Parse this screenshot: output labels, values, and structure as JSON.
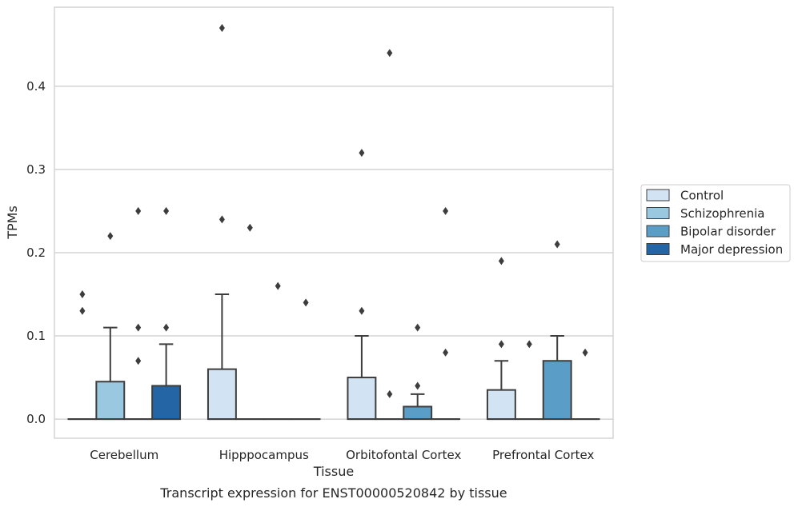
{
  "chart_data": {
    "type": "box",
    "caption": "Transcript expression for ENST00000520842 by tissue",
    "xlabel": "Tissue",
    "ylabel": "TPMs",
    "ylim": [
      -0.023,
      0.495
    ],
    "yticks": [
      0.0,
      0.1,
      0.2,
      0.3,
      0.4
    ],
    "ytick_labels": [
      "0.0",
      "0.1",
      "0.2",
      "0.3",
      "0.4"
    ],
    "grid": true,
    "legend_position": "right",
    "categories": [
      "Cerebellum",
      "Hipppocampus",
      "Orbitofontal Cortex",
      "Prefrontal Cortex"
    ],
    "series": [
      {
        "name": "Control",
        "color": "#d2e3f3",
        "boxes": [
          {
            "q1": 0,
            "median": 0,
            "q3": 0,
            "whisker_low": 0,
            "whisker_high": 0,
            "outliers": [
              0.13,
              0.15
            ]
          },
          {
            "q1": 0,
            "median": 0,
            "q3": 0.06,
            "whisker_low": 0,
            "whisker_high": 0.15,
            "outliers": [
              0.24,
              0.47
            ]
          },
          {
            "q1": 0,
            "median": 0,
            "q3": 0.05,
            "whisker_low": 0,
            "whisker_high": 0.1,
            "outliers": [
              0.13,
              0.32
            ]
          },
          {
            "q1": 0,
            "median": 0,
            "q3": 0.035,
            "whisker_low": 0,
            "whisker_high": 0.07,
            "outliers": [
              0.09,
              0.19
            ]
          }
        ]
      },
      {
        "name": "Schizophrenia",
        "color": "#9ac8e0",
        "boxes": [
          {
            "q1": 0,
            "median": 0,
            "q3": 0.045,
            "whisker_low": 0,
            "whisker_high": 0.11,
            "outliers": [
              0.22
            ]
          },
          {
            "q1": 0,
            "median": 0,
            "q3": 0,
            "whisker_low": 0,
            "whisker_high": 0,
            "outliers": [
              0.23
            ]
          },
          {
            "q1": 0,
            "median": 0,
            "q3": 0,
            "whisker_low": 0,
            "whisker_high": 0,
            "outliers": [
              0.03,
              0.44
            ]
          },
          {
            "q1": 0,
            "median": 0,
            "q3": 0,
            "whisker_low": 0,
            "whisker_high": 0,
            "outliers": [
              0.09
            ]
          }
        ]
      },
      {
        "name": "Bipolar disorder",
        "color": "#5a9ec8",
        "boxes": [
          {
            "q1": 0,
            "median": 0,
            "q3": 0,
            "whisker_low": 0,
            "whisker_high": 0,
            "outliers": [
              0.07,
              0.11,
              0.25
            ]
          },
          {
            "q1": 0,
            "median": 0,
            "q3": 0,
            "whisker_low": 0,
            "whisker_high": 0,
            "outliers": [
              0.16
            ]
          },
          {
            "q1": 0,
            "median": 0,
            "q3": 0.015,
            "whisker_low": 0,
            "whisker_high": 0.03,
            "outliers": [
              0.04,
              0.11
            ]
          },
          {
            "q1": 0,
            "median": 0,
            "q3": 0.07,
            "whisker_low": 0,
            "whisker_high": 0.1,
            "outliers": [
              0.21
            ]
          }
        ]
      },
      {
        "name": "Major depression",
        "color": "#2465a6",
        "boxes": [
          {
            "q1": 0,
            "median": 0,
            "q3": 0.04,
            "whisker_low": 0,
            "whisker_high": 0.09,
            "outliers": [
              0.11,
              0.25
            ]
          },
          {
            "q1": 0,
            "median": 0,
            "q3": 0,
            "whisker_low": 0,
            "whisker_high": 0,
            "outliers": [
              0.14
            ]
          },
          {
            "q1": 0,
            "median": 0,
            "q3": 0,
            "whisker_low": 0,
            "whisker_high": 0,
            "outliers": [
              0.08,
              0.25
            ]
          },
          {
            "q1": 0,
            "median": 0,
            "q3": 0,
            "whisker_low": 0,
            "whisker_high": 0,
            "outliers": [
              0.08
            ]
          }
        ]
      }
    ]
  }
}
